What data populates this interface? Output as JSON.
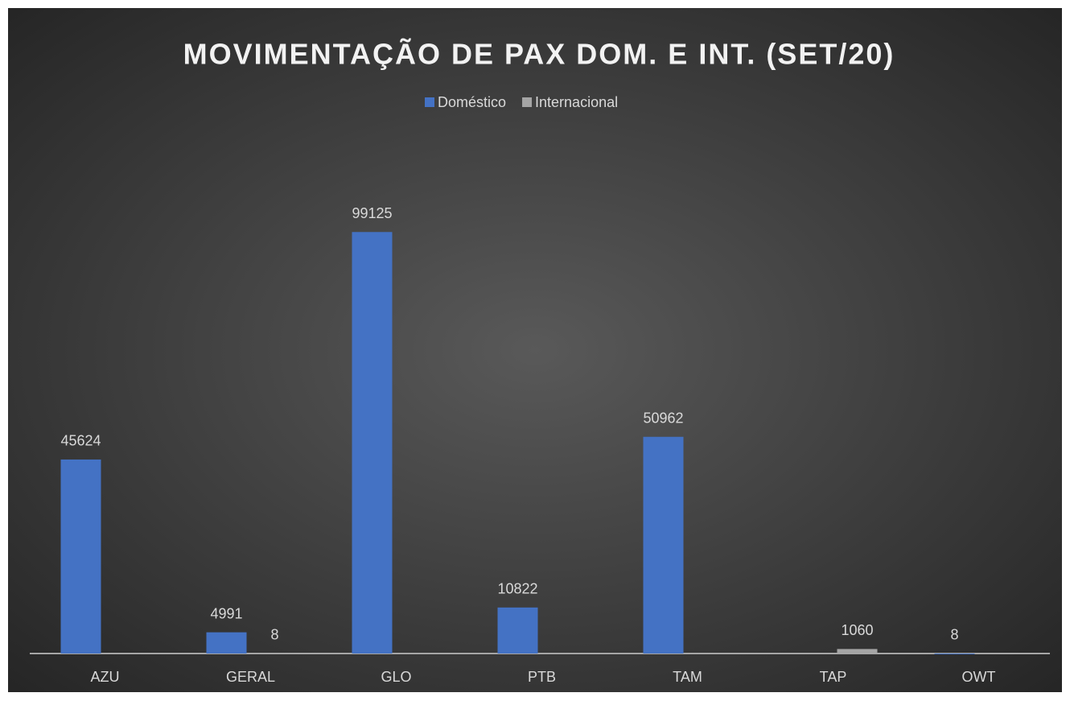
{
  "chart_data": {
    "type": "bar",
    "title": "MOVIMENTAÇÃO DE PAX DOM. E INT. (SET/20)",
    "categories": [
      "AZU",
      "GERAL",
      "GLO",
      "PTB",
      "TAM",
      "TAP",
      "OWT"
    ],
    "series": [
      {
        "name": "Doméstico",
        "color": "#4472c4",
        "values": [
          45624,
          4991,
          99125,
          10822,
          50962,
          null,
          8
        ]
      },
      {
        "name": "Internacional",
        "color": "#a5a5a5",
        "values": [
          null,
          8,
          null,
          null,
          null,
          1060,
          null
        ]
      }
    ],
    "ylim": [
      0,
      120000
    ],
    "legend": "top"
  }
}
